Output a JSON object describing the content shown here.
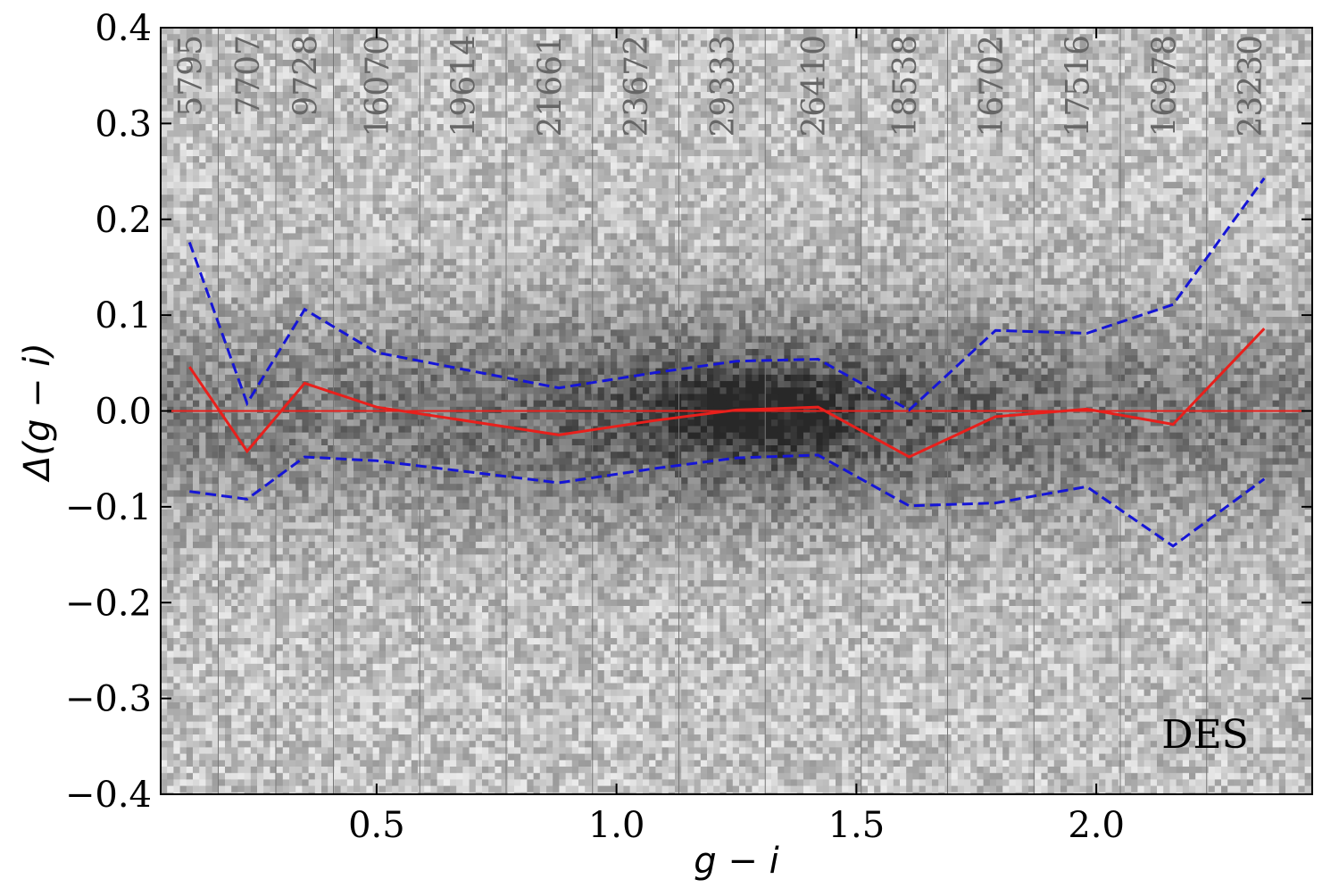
{
  "chart_data": {
    "type": "scatter",
    "panel_label": "DES",
    "xlabel": "g − i",
    "ylabel": "Δ(g − i)",
    "xlim": [
      0.05,
      2.45
    ],
    "ylim": [
      -0.4,
      0.4
    ],
    "x_ticks": [
      0.5,
      1.0,
      1.5,
      2.0
    ],
    "x_tick_labels": [
      "0.5",
      "1.0",
      "1.5",
      "2.0"
    ],
    "y_ticks": [
      -0.4,
      -0.3,
      -0.2,
      -0.1,
      0.0,
      0.1,
      0.2,
      0.3,
      0.4
    ],
    "y_tick_labels": [
      "−0.4",
      "−0.3",
      "−0.2",
      "−0.1",
      "0.0",
      "0.1",
      "0.2",
      "0.3",
      "0.4"
    ],
    "grid": false,
    "background": "2D density histogram (grayscale) of Δ(g−i) vs g−i",
    "bin_edges": [
      0.05,
      0.17,
      0.29,
      0.41,
      0.59,
      0.77,
      0.95,
      1.13,
      1.31,
      1.51,
      1.69,
      1.87,
      2.05,
      2.23
    ],
    "bin_counts": [
      "5795",
      "7707",
      "9728",
      "16070",
      "19614",
      "21661",
      "23672",
      "29333",
      "26410",
      "18538",
      "16702",
      "17516",
      "16978",
      "23230"
    ],
    "zero_line": {
      "y": 0.0,
      "color": "#e8201c"
    },
    "series": [
      {
        "style": "solid",
        "color": "#e8201c",
        "x": [
          0.11,
          0.23,
          0.35,
          0.5,
          0.88,
          1.08,
          1.25,
          1.42,
          1.61,
          1.79,
          1.98,
          2.16,
          2.35
        ],
        "y": [
          0.046,
          -0.042,
          0.029,
          0.004,
          -0.025,
          -0.01,
          0.001,
          0.004,
          -0.048,
          -0.006,
          0.002,
          -0.014,
          0.086
        ]
      },
      {
        "style": "dashed",
        "color": "#1515d6",
        "x": [
          0.11,
          0.23,
          0.35,
          0.5,
          0.88,
          1.08,
          1.25,
          1.42,
          1.61,
          1.79,
          1.98,
          2.16,
          2.35
        ],
        "y": [
          0.176,
          0.008,
          0.106,
          0.061,
          0.024,
          0.04,
          0.052,
          0.054,
          0.001,
          0.084,
          0.081,
          0.111,
          0.243
        ]
      },
      {
        "style": "dashed",
        "color": "#1515d6",
        "x": [
          0.11,
          0.23,
          0.35,
          0.5,
          0.88,
          1.08,
          1.25,
          1.42,
          1.61,
          1.79,
          1.98,
          2.16,
          2.35
        ],
        "y": [
          -0.084,
          -0.092,
          -0.048,
          -0.052,
          -0.075,
          -0.06,
          -0.049,
          -0.046,
          -0.099,
          -0.096,
          -0.079,
          -0.141,
          -0.071
        ]
      }
    ]
  }
}
